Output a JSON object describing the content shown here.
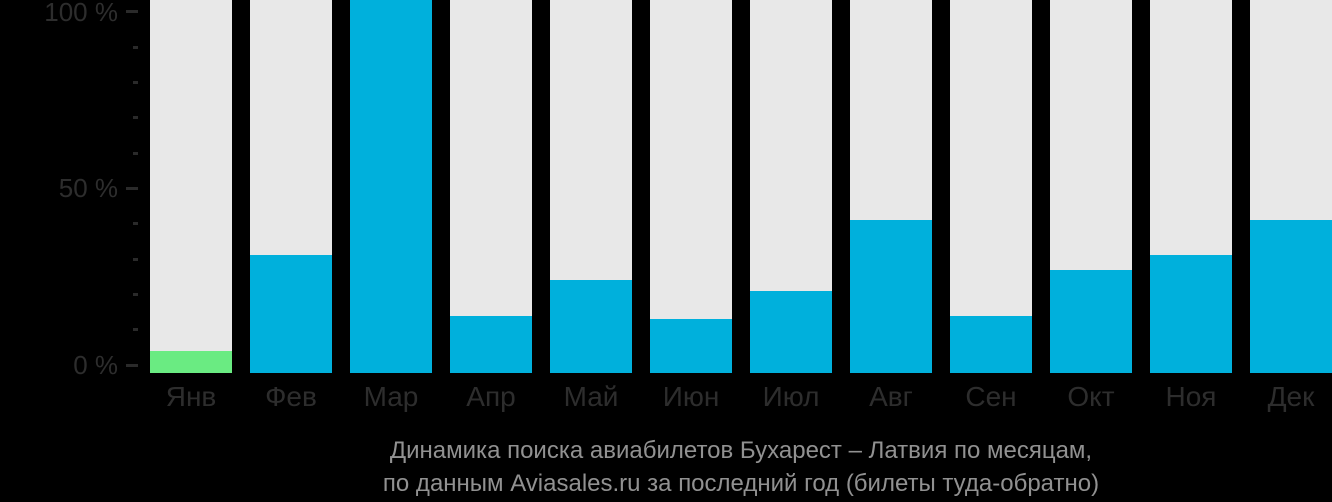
{
  "chart_data": {
    "type": "bar",
    "title_lines": [
      "Динамика поиска авиабилетов Бухарест – Латвия по месяцам,",
      "по данным Aviasales.ru за последний год (билеты туда-обратно)"
    ],
    "categories": [
      "Янв",
      "Фев",
      "Мар",
      "Апр",
      "Май",
      "Июн",
      "Июл",
      "Авг",
      "Сен",
      "Окт",
      "Ноя",
      "Дек"
    ],
    "values": [
      4,
      31,
      100,
      14,
      24,
      13,
      21,
      41,
      14,
      27,
      31,
      41
    ],
    "unit": "%",
    "ylim": [
      0,
      100
    ],
    "y_major_ticks": [
      {
        "value": 100,
        "label": "100 %"
      },
      {
        "value": 50,
        "label": "50 %"
      },
      {
        "value": 0,
        "label": "0 %"
      }
    ],
    "y_minor_tick_values": [
      10,
      20,
      30,
      40,
      60,
      70,
      80,
      90
    ],
    "highlight_index": 0,
    "legend": null,
    "grid": false,
    "colors": {
      "background": "#000000",
      "bar": "#00b0dc",
      "highlight_bar": "#6aeb82",
      "track": "#e8e8e8",
      "axis_text": "#2d2d2d",
      "tick": "#2a2a2a",
      "title_text": "#919191"
    }
  }
}
